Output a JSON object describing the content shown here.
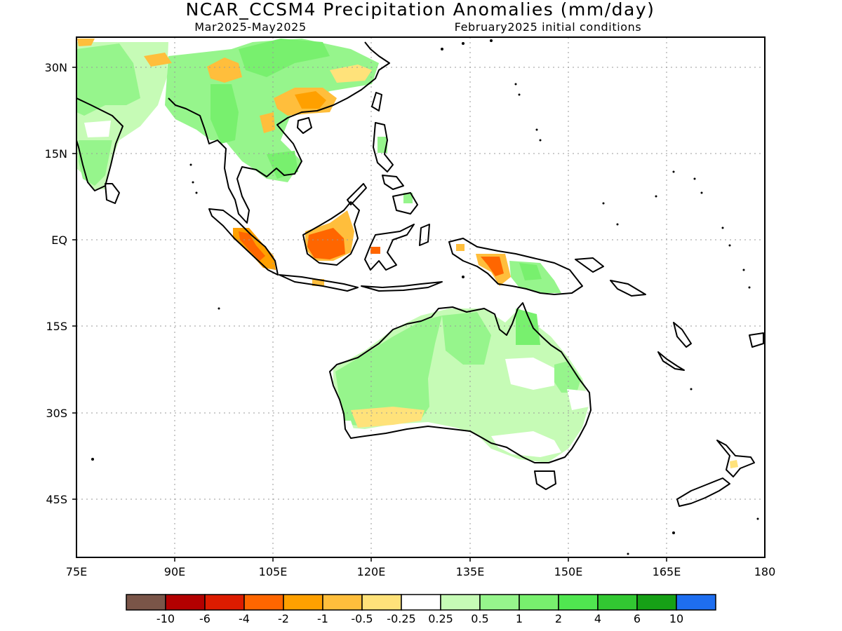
{
  "title": "NCAR_CCSM4 Precipitation Anomalies (mm/day)",
  "subtitle_left": "Mar2025-May2025",
  "subtitle_right": "February2025 initial conditions",
  "chart_data": {
    "type": "heatmap",
    "variable": "Precipitation Anomalies",
    "units": "mm/day",
    "x_axis": {
      "range_deg_east": [
        75,
        180
      ],
      "tick_values": [
        75,
        90,
        105,
        120,
        135,
        150,
        165,
        180
      ],
      "tick_labels": [
        "75E",
        "90E",
        "105E",
        "120E",
        "135E",
        "150E",
        "165E",
        "180"
      ]
    },
    "y_axis": {
      "range_deg_lat": [
        -55,
        35
      ],
      "tick_values": [
        30,
        15,
        0,
        -15,
        -30,
        -45
      ],
      "tick_labels": [
        "30N",
        "15N",
        "EQ",
        "15S",
        "30S",
        "45S"
      ]
    },
    "grid": true,
    "colorbar": {
      "placement": "bottom",
      "labels": [
        "-10",
        "-6",
        "-4",
        "-2",
        "-1",
        "-0.5",
        "-0.25",
        "0.25",
        "0.5",
        "1",
        "2",
        "4",
        "6",
        "10"
      ],
      "colors": [
        "#7a5548",
        "#b30000",
        "#dd1c00",
        "#ff6600",
        "#ffa000",
        "#ffbe3c",
        "#ffe27a",
        "#ffffff",
        "#c6fbb6",
        "#96f58c",
        "#78f06e",
        "#50e650",
        "#32c832",
        "#16a016",
        "#1e6ef0"
      ]
    },
    "regions": [
      {
        "area": "Australia interior",
        "category": "0.25 to 0.5",
        "color": "#c6fbb6"
      },
      {
        "area": "Western Australia",
        "category": "0.5 to 1",
        "color": "#96f58c"
      },
      {
        "area": "Northern Australia (Cape York, Arnhem)",
        "category": "1 to 2",
        "color": "#78f06e"
      },
      {
        "area": "Southern China",
        "category": "-1 to -0.5",
        "color": "#ffbe3c"
      },
      {
        "area": "Tibetan Plateau",
        "category": "-1 to -0.5",
        "color": "#ffbe3c"
      },
      {
        "area": "Southwest Borneo",
        "category": "-4 to -2",
        "color": "#ff6600"
      },
      {
        "area": "Sumatra",
        "category": "-2 to -1",
        "color": "#ffa000"
      },
      {
        "area": "Western New Guinea",
        "category": "-4 to -2",
        "color": "#ff6600"
      },
      {
        "area": "Indochina / Myanmar",
        "category": "0.5 to 1",
        "color": "#96f58c"
      },
      {
        "area": "India",
        "category": "0.25 to 1",
        "color": "#c6fbb6"
      },
      {
        "area": "Papua New Guinea highlands",
        "category": "0.5 to 1",
        "color": "#96f58c"
      }
    ]
  }
}
